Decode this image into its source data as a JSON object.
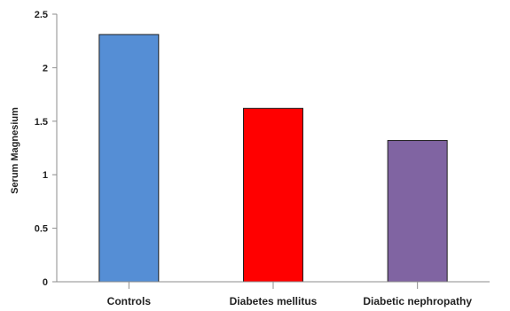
{
  "chart_data": {
    "type": "bar",
    "categories": [
      "Controls",
      "Diabetes mellitus",
      "Diabetic nephropathy"
    ],
    "values": [
      2.31,
      1.62,
      1.32
    ],
    "colors": [
      "#558ED5",
      "#FF0000",
      "#8064A2"
    ],
    "title": "",
    "xlabel": "",
    "ylabel": "Serum Magnesium",
    "ylim": [
      0,
      2.5
    ],
    "yticks": [
      0,
      0.5,
      1,
      1.5,
      2,
      2.5
    ],
    "ytick_labels": [
      "0",
      "0.5",
      "1",
      "1.5",
      "2",
      "2.5"
    ],
    "grid": false,
    "legend": "none"
  }
}
